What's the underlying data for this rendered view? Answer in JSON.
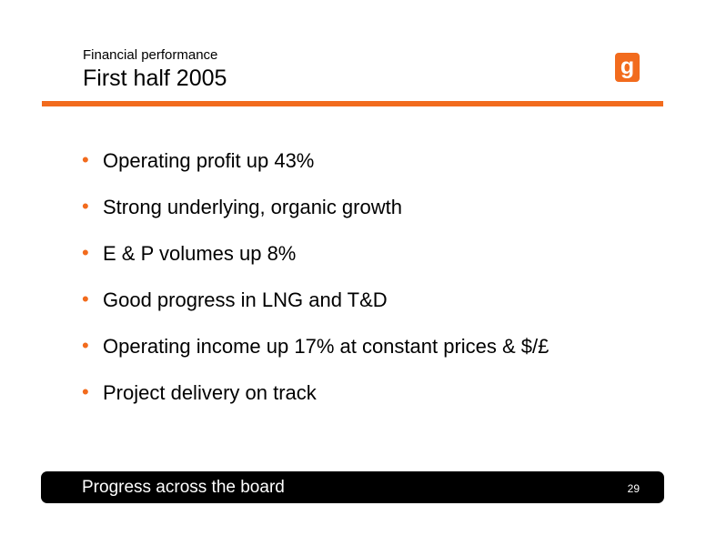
{
  "header": {
    "subtitle": "Financial performance",
    "title": "First half 2005"
  },
  "logo": {
    "icon": "bg-group-logo-icon",
    "text": "g",
    "color": "#f26b1d"
  },
  "accent_color": "#f26b1d",
  "bullets": [
    "Operating profit up 43%",
    "Strong underlying, organic growth",
    "E & P volumes up 8%",
    "Good progress in LNG and T&D",
    "Operating income up 17% at constant prices & $/£",
    "Project delivery  on track"
  ],
  "footer": {
    "text": "Progress across the board",
    "page_number": "29"
  }
}
